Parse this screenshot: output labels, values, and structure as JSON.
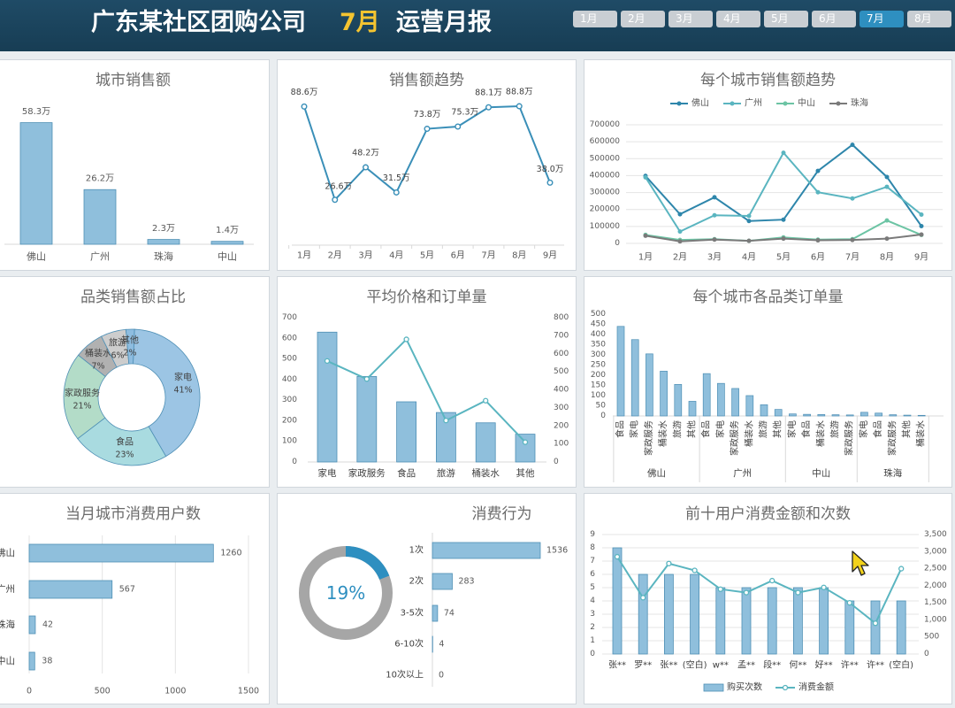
{
  "header": {
    "title_prefix": "广东某社区团购公司",
    "title_month": "7月",
    "title_suffix": "运营月报",
    "tabs": [
      "1月",
      "2月",
      "3月",
      "4月",
      "5月",
      "6月",
      "7月",
      "8月"
    ],
    "active_tab": 6
  },
  "colors": {
    "bar": "#8fbfdc",
    "bar_edge": "#4e8fb5",
    "line": "#3a8fb8",
    "teal": "#5ab5c0",
    "grid": "#e4e4e4",
    "axis_text": "#595959",
    "header_bg": "#1f4b66",
    "month_accent": "#f4c430",
    "tab_active": "#2e8fc0"
  },
  "chart_data": [
    {
      "id": "city_sales",
      "type": "bar",
      "title": "城市销售额",
      "categories": [
        "佛山",
        "广州",
        "珠海",
        "中山"
      ],
      "values": [
        58.3,
        26.2,
        2.3,
        1.4
      ],
      "value_labels": [
        "58.3万",
        "26.2万",
        "2.3万",
        "1.4万"
      ]
    },
    {
      "id": "sales_trend",
      "type": "line",
      "title": "销售额趋势",
      "x": [
        "1月",
        "2月",
        "3月",
        "4月",
        "5月",
        "6月",
        "7月",
        "8月",
        "9月"
      ],
      "values": [
        88.6,
        26.6,
        48.2,
        31.5,
        73.8,
        75.3,
        88.1,
        88.8,
        38.0
      ],
      "value_labels": [
        "88.6万",
        "26.6万",
        "48.2万",
        "31.5万",
        "73.8万",
        "75.3万",
        "88.1万",
        "88.8万",
        "38.0万"
      ]
    },
    {
      "id": "city_trend",
      "type": "line",
      "title": "每个城市销售额趋势",
      "x": [
        "1月",
        "2月",
        "3月",
        "4月",
        "5月",
        "6月",
        "7月",
        "8月",
        "9月"
      ],
      "y_ticks": [
        "0",
        "100000",
        "200000",
        "300000",
        "400000",
        "500000",
        "600000",
        "700000"
      ],
      "ylim": [
        0,
        700000
      ],
      "legend_position": "top",
      "series": [
        {
          "name": "佛山",
          "color": "#2e86ab",
          "values": [
            398000,
            172000,
            272000,
            132000,
            140000,
            428000,
            582000,
            392000,
            102000
          ]
        },
        {
          "name": "广州",
          "color": "#5ab5c0",
          "values": [
            390000,
            70000,
            166000,
            162000,
            535000,
            302000,
            265000,
            334000,
            170000
          ]
        },
        {
          "name": "中山",
          "color": "#6cc4a4",
          "values": [
            50000,
            20000,
            25000,
            15000,
            35000,
            22000,
            25000,
            135000,
            50000
          ]
        },
        {
          "name": "珠海",
          "color": "#7a7a7a",
          "values": [
            45000,
            12000,
            22000,
            15000,
            28000,
            18000,
            20000,
            28000,
            52000
          ]
        }
      ]
    },
    {
      "id": "category_share",
      "type": "pie",
      "title": "品类销售额占比",
      "slices": [
        {
          "name": "家电",
          "pct": 41,
          "label": "41%",
          "color": "#9cc5e4"
        },
        {
          "name": "食品",
          "pct": 23,
          "label": "23%",
          "color": "#a9dbe0"
        },
        {
          "name": "家政服务",
          "pct": 21,
          "label": "21%",
          "color": "#b3dcc8"
        },
        {
          "name": "桶装水",
          "pct": 7,
          "label": "7%",
          "color": "#b1b1b1"
        },
        {
          "name": "旅游",
          "pct": 6,
          "label": "6%",
          "color": "#cdcdcd"
        },
        {
          "name": "其他",
          "pct": 2,
          "label": "2%",
          "color": "#8ebde0"
        }
      ]
    },
    {
      "id": "price_orders",
      "type": "bar",
      "title": "平均价格和订单量",
      "categories": [
        "家电",
        "家政服务",
        "食品",
        "旅游",
        "桶装水",
        "其他"
      ],
      "bar_values": [
        630,
        415,
        292,
        240,
        190,
        135
      ],
      "line_values": [
        560,
        460,
        680,
        230,
        340,
        110
      ],
      "y_left_ticks": [
        "0",
        "100",
        "200",
        "300",
        "400",
        "500",
        "600",
        "700"
      ],
      "y_right_ticks": [
        "0",
        "100",
        "200",
        "300",
        "400",
        "500",
        "600",
        "700",
        "800"
      ],
      "ylim_left": [
        0,
        700
      ],
      "ylim_right": [
        0,
        800
      ]
    },
    {
      "id": "city_category_orders",
      "type": "bar",
      "title": "每个城市各品类订单量",
      "y_ticks": [
        "0",
        "50",
        "100",
        "150",
        "200",
        "250",
        "300",
        "350",
        "400",
        "450",
        "500"
      ],
      "ylim": [
        0,
        500
      ],
      "groups": [
        {
          "name": "佛山",
          "categories": [
            "食品",
            "家电",
            "家政服务",
            "桶装水",
            "旅游",
            "其他"
          ],
          "values": [
            440,
            375,
            305,
            220,
            155,
            72
          ]
        },
        {
          "name": "广州",
          "categories": [
            "食品",
            "家电",
            "家政服务",
            "桶装水",
            "旅游",
            "其他"
          ],
          "values": [
            208,
            160,
            135,
            100,
            55,
            32
          ]
        },
        {
          "name": "中山",
          "categories": [
            "家电",
            "食品",
            "桶装水",
            "旅游",
            "家政服务"
          ],
          "values": [
            10,
            8,
            7,
            6,
            5
          ]
        },
        {
          "name": "珠海",
          "categories": [
            "家电",
            "食品",
            "家政服务",
            "其他",
            "桶装水"
          ],
          "values": [
            18,
            14,
            6,
            4,
            3
          ]
        }
      ]
    },
    {
      "id": "city_users",
      "type": "bar",
      "orientation": "horizontal",
      "title": "当月城市消费用户数",
      "categories": [
        "佛山",
        "广州",
        "珠海",
        "中山"
      ],
      "values": [
        1260,
        567,
        42,
        38
      ],
      "value_labels": [
        "1260",
        "567",
        "42",
        "38"
      ],
      "x_ticks": [
        "0",
        "500",
        "1000",
        "1500"
      ],
      "xlim": [
        0,
        1500
      ]
    },
    {
      "id": "consumption_behavior",
      "type": "bar",
      "orientation": "horizontal",
      "title": "消费行为",
      "donut_value": 19,
      "donut_label": "19%",
      "categories": [
        "1次",
        "2次",
        "3-5次",
        "6-10次",
        "10次以上"
      ],
      "values": [
        1536,
        283,
        74,
        4,
        0
      ],
      "value_labels": [
        "1536",
        "283",
        "74",
        "4",
        "0"
      ]
    },
    {
      "id": "top10_users",
      "type": "bar",
      "title": "前十用户消费金额和次数",
      "categories": [
        "张**",
        "罗**",
        "张**",
        "(空白)",
        "w**",
        "孟**",
        "段**",
        "何**",
        "好**",
        "许**",
        "许**",
        "(空白)"
      ],
      "bar_values": [
        8,
        6,
        6,
        6,
        5,
        5,
        5,
        5,
        5,
        4,
        4,
        4
      ],
      "line_values": [
        2850,
        1650,
        2650,
        2450,
        1900,
        1800,
        2150,
        1800,
        1950,
        1500,
        900,
        2500
      ],
      "y_left_ticks": [
        "0",
        "1",
        "2",
        "3",
        "4",
        "5",
        "6",
        "7",
        "8",
        "9"
      ],
      "y_right_ticks": [
        "0",
        "500",
        "1,000",
        "1,500",
        "2,000",
        "2,500",
        "3,000",
        "3,500"
      ],
      "ylim_left": [
        0,
        9
      ],
      "ylim_right": [
        0,
        3500
      ],
      "legend": [
        "购买次数",
        "消费金额"
      ],
      "legend_position": "bottom"
    }
  ]
}
